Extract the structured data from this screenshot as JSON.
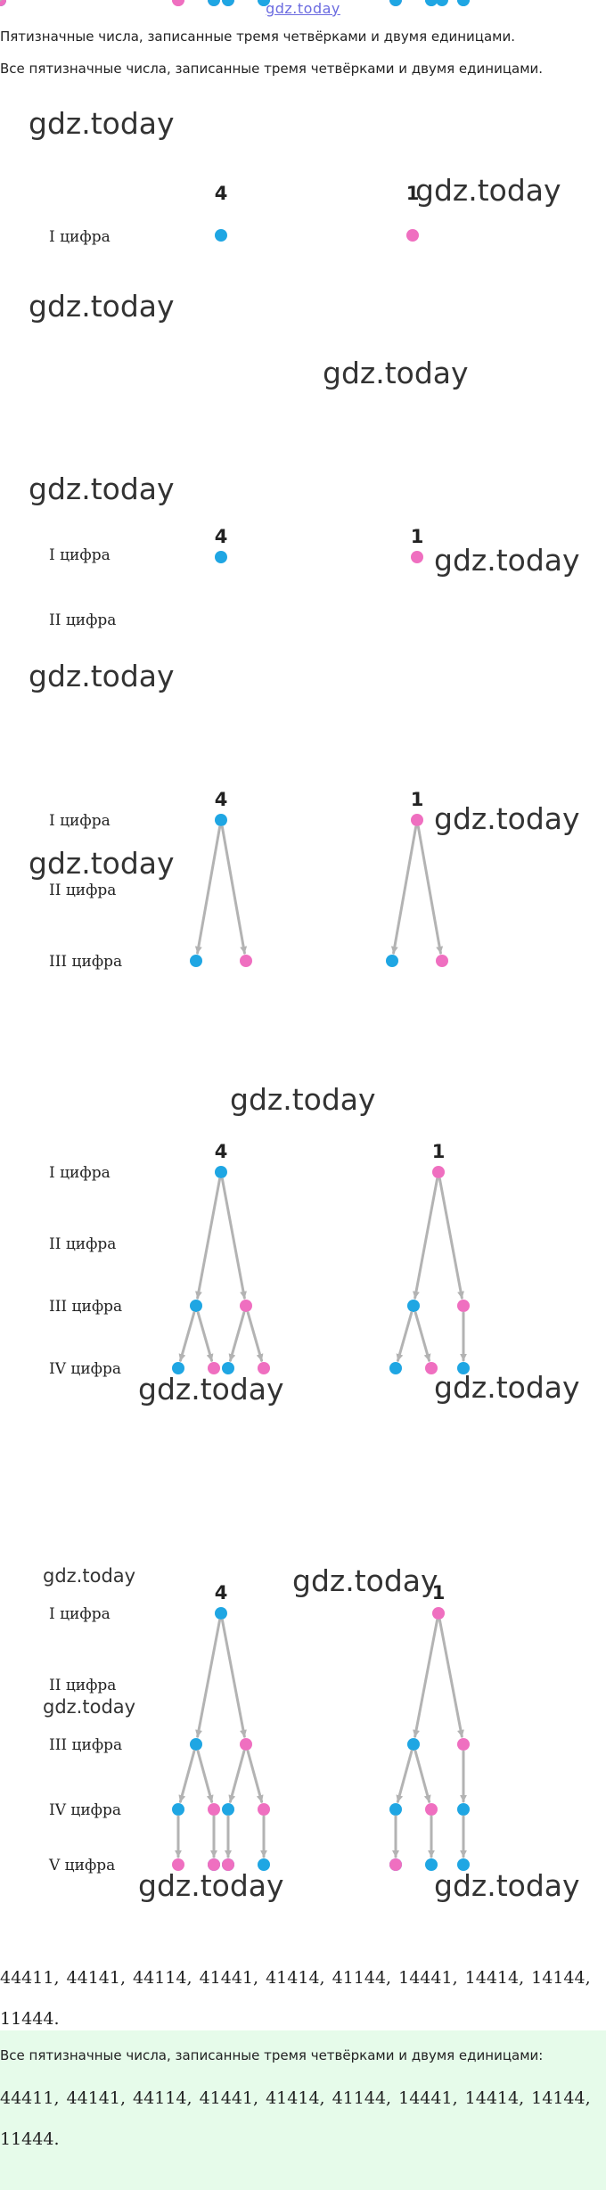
{
  "site": {
    "logo": "gdz.today"
  },
  "intro": {
    "line1": "Пятизначные числа, записанные тремя четвёрками и двумя единицами.",
    "line2": "Все пятизначные числа, записанные тремя четвёрками и двумя единицами."
  },
  "watermark": "gdz.today",
  "labels": {
    "root_4": "4",
    "root_1": "1",
    "rows": [
      "I цифра",
      "II цифра",
      "III цифра",
      "IV цифра",
      "V цифра"
    ]
  },
  "answer": {
    "numbers_line": "44411, 44141, 44114, 41441, 41414, 41144, 14441, 14414, 14144, 11444.",
    "box_title": "Все пятизначные числа, записанные тремя четвёрками и двумя единицами:",
    "box_numbers": "44411, 44141, 44114, 41441, 41414, 41144, 14441, 14414, 14144, 11444."
  },
  "colors": {
    "digit_4": "#1fa6e3",
    "digit_1": "#ef6fc0",
    "edge": "#b3b3b3",
    "answer_bg": "#e6fbea"
  }
}
